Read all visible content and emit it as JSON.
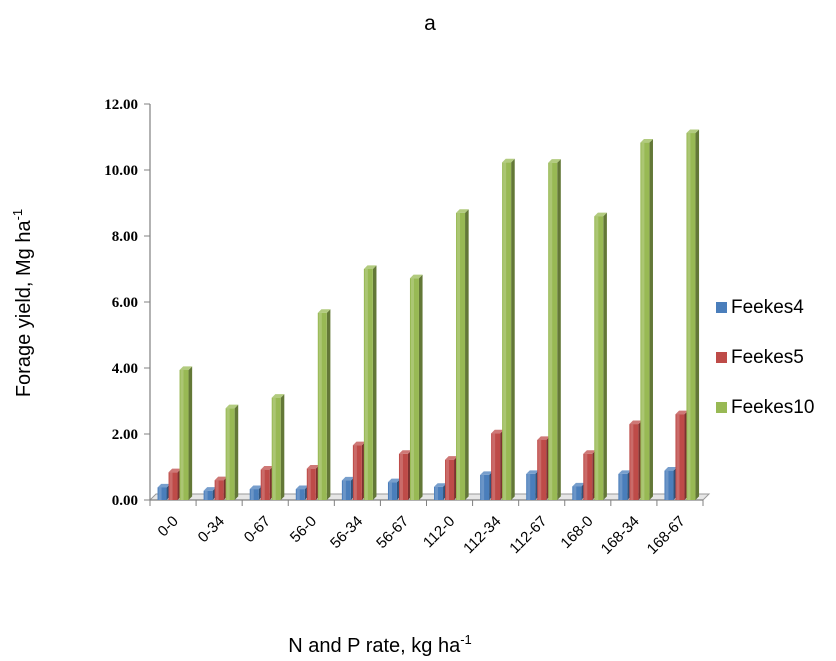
{
  "chart_data": {
    "type": "bar",
    "title": "a",
    "xlabel": "N and P rate, kg ha",
    "xlabel_sup": "-1",
    "ylabel": "Forage yield, Mg ha",
    "ylabel_sup": "-1",
    "ylim": [
      0,
      12
    ],
    "yticks": [
      "0.00",
      "2.00",
      "4.00",
      "6.00",
      "8.00",
      "10.00",
      "12.00"
    ],
    "grid": false,
    "legend_position": "right",
    "categories": [
      "0-0",
      "0-34",
      "0-67",
      "56-0",
      "56-34",
      "56-67",
      "112-0",
      "112-34",
      "112-67",
      "168-0",
      "168-34",
      "168-67"
    ],
    "series": [
      {
        "name": "Feekes4",
        "color": "#4a7ebb",
        "values": [
          0.38,
          0.28,
          0.33,
          0.33,
          0.59,
          0.54,
          0.4,
          0.76,
          0.79,
          0.41,
          0.79,
          0.89
        ]
      },
      {
        "name": "Feekes5",
        "color": "#be4b48",
        "values": [
          0.84,
          0.6,
          0.92,
          0.95,
          1.66,
          1.4,
          1.22,
          2.02,
          1.82,
          1.4,
          2.3,
          2.6
        ]
      },
      {
        "name": "Feekes10",
        "color": "#98b954",
        "values": [
          3.94,
          2.78,
          3.1,
          5.67,
          7.0,
          6.72,
          8.7,
          10.23,
          10.22,
          8.6,
          10.83,
          11.12
        ]
      }
    ]
  }
}
